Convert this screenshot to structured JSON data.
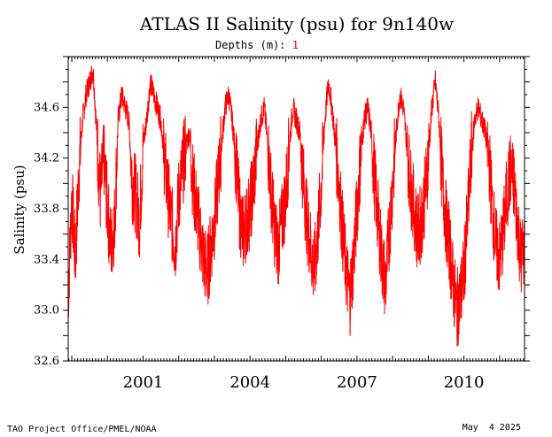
{
  "chart_data": {
    "type": "line",
    "title": "ATLAS II Salinity (psu) for 9n140w",
    "depth_label": "Depths (m):",
    "depth_value": "1",
    "ylabel": "Salinity (psu)",
    "xlabel": "",
    "ylim": [
      32.6,
      35.0
    ],
    "yticks": [
      32.6,
      33.0,
      33.4,
      33.8,
      34.2,
      34.6
    ],
    "ytick_labels": [
      "32.6",
      "33.0",
      "33.4",
      "33.8",
      "34.2",
      "34.6"
    ],
    "xlim": [
      1998.9,
      2011.7
    ],
    "xticks": [
      2001,
      2004,
      2007,
      2010
    ],
    "xtick_labels": [
      "2001",
      "2004",
      "2007",
      "2010"
    ],
    "grid": false,
    "series": [
      {
        "name": "1",
        "color": "#ff0000",
        "x": [
          1998.9,
          1999.0,
          1999.1,
          1999.2,
          1999.3,
          1999.4,
          1999.5,
          1999.6,
          1999.7,
          1999.8,
          1999.9,
          2000.0,
          2000.1,
          2000.2,
          2000.3,
          2000.4,
          2000.5,
          2000.6,
          2000.7,
          2000.8,
          2000.9,
          2001.0,
          2001.1,
          2001.2,
          2001.3,
          2001.4,
          2001.5,
          2001.6,
          2001.7,
          2001.8,
          2001.9,
          2002.0,
          2002.1,
          2002.2,
          2002.3,
          2002.4,
          2002.5,
          2002.6,
          2002.7,
          2002.8,
          2002.9,
          2003.0,
          2003.1,
          2003.2,
          2003.3,
          2003.4,
          2003.5,
          2003.6,
          2003.7,
          2003.8,
          2003.9,
          2004.0,
          2004.1,
          2004.2,
          2004.3,
          2004.4,
          2004.5,
          2004.6,
          2004.7,
          2004.8,
          2004.9,
          2005.0,
          2005.1,
          2005.2,
          2005.3,
          2005.4,
          2005.5,
          2005.6,
          2005.7,
          2005.8,
          2005.9,
          2006.0,
          2006.1,
          2006.2,
          2006.3,
          2006.4,
          2006.5,
          2006.6,
          2006.7,
          2006.8,
          2006.9,
          2007.0,
          2007.1,
          2007.2,
          2007.3,
          2007.4,
          2007.5,
          2007.6,
          2007.7,
          2007.8,
          2007.9,
          2008.0,
          2008.1,
          2008.2,
          2008.3,
          2008.4,
          2008.5,
          2008.6,
          2008.7,
          2008.8,
          2008.9,
          2009.0,
          2009.1,
          2009.2,
          2009.3,
          2009.4,
          2009.5,
          2009.6,
          2009.7,
          2009.8,
          2009.9,
          2010.0,
          2010.1,
          2010.2,
          2010.3,
          2010.4,
          2010.5,
          2010.6,
          2010.7,
          2010.8,
          2010.9,
          2011.0,
          2011.1,
          2011.2,
          2011.3,
          2011.4,
          2011.5,
          2011.6,
          2011.7
        ],
        "values": [
          33.1,
          33.9,
          33.4,
          34.1,
          34.5,
          34.7,
          34.8,
          34.9,
          34.4,
          33.9,
          34.2,
          33.8,
          33.5,
          33.7,
          34.5,
          34.7,
          34.6,
          34.5,
          34.0,
          33.9,
          33.7,
          34.3,
          34.5,
          34.8,
          34.7,
          34.6,
          34.5,
          34.2,
          33.9,
          33.7,
          33.5,
          33.9,
          34.1,
          34.3,
          34.4,
          34.0,
          33.8,
          33.6,
          33.4,
          33.3,
          33.5,
          33.7,
          34.0,
          34.3,
          34.6,
          34.7,
          34.5,
          34.2,
          33.8,
          33.6,
          33.7,
          33.8,
          34.0,
          34.3,
          34.5,
          34.6,
          34.3,
          33.9,
          33.6,
          33.5,
          33.7,
          33.9,
          34.3,
          34.6,
          34.5,
          34.4,
          34.0,
          33.7,
          33.5,
          33.3,
          33.6,
          34.0,
          34.5,
          34.8,
          34.6,
          34.3,
          34.0,
          33.6,
          33.3,
          33.1,
          33.4,
          33.8,
          34.2,
          34.5,
          34.6,
          34.4,
          34.0,
          33.7,
          33.4,
          33.2,
          33.6,
          34.0,
          34.4,
          34.7,
          34.6,
          34.3,
          34.0,
          33.8,
          33.6,
          33.7,
          33.9,
          34.2,
          34.6,
          34.8,
          34.5,
          34.0,
          33.7,
          33.5,
          33.2,
          33.0,
          33.1,
          33.3,
          33.7,
          34.2,
          34.5,
          34.6,
          34.5,
          34.4,
          34.2,
          33.8,
          33.5,
          33.4,
          33.6,
          33.9,
          34.1,
          34.0,
          33.7,
          33.4,
          33.5
        ]
      }
    ]
  },
  "footer": {
    "left": "TAO Project Office/PMEL/NOAA",
    "right": "May  4 2025"
  }
}
